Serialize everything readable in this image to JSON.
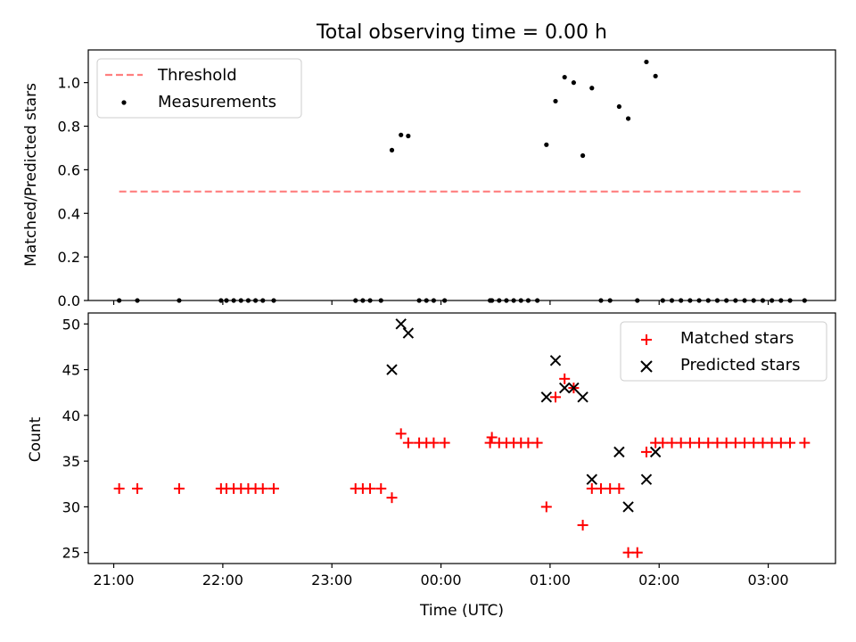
{
  "figure": {
    "title": "Total observing time = 0.00 h"
  },
  "chart_data": [
    {
      "type": "scatter",
      "title": "Total observing time = 0.00 h",
      "xlabel": "",
      "ylabel": "Matched/Predicted stars",
      "x_unit": "hours since 21:00 UTC",
      "xlim": [
        "20:46",
        "03:37"
      ],
      "ylim": [
        0,
        1.15
      ],
      "xticks": [
        "21:00",
        "22:00",
        "23:00",
        "00:00",
        "01:00",
        "02:00",
        "03:00"
      ],
      "yticks": [
        "0.0",
        "0.2",
        "0.4",
        "0.6",
        "0.8",
        "1.0"
      ],
      "legend": {
        "position": "top-left",
        "entries": [
          "Threshold",
          "Measurements"
        ]
      },
      "series": [
        {
          "name": "Threshold",
          "kind": "dashed-line",
          "color": "#ff7f7f",
          "points": [
            [
              "21:03",
              0.5
            ],
            [
              "03:18",
              0.5
            ]
          ]
        },
        {
          "name": "Measurements",
          "kind": "dot",
          "color": "#000000",
          "points": [
            [
              "21:03",
              0.0
            ],
            [
              "21:13",
              0.0
            ],
            [
              "21:36",
              0.0
            ],
            [
              "21:59",
              0.0
            ],
            [
              "22:02",
              0.0
            ],
            [
              "22:06",
              0.0
            ],
            [
              "22:10",
              0.0
            ],
            [
              "22:14",
              0.0
            ],
            [
              "22:18",
              0.0
            ],
            [
              "22:22",
              0.0
            ],
            [
              "22:28",
              0.0
            ],
            [
              "23:13",
              0.0
            ],
            [
              "23:17",
              0.0
            ],
            [
              "23:21",
              0.0
            ],
            [
              "23:27",
              0.0
            ],
            [
              "23:33",
              0.69
            ],
            [
              "23:38",
              0.76
            ],
            [
              "23:42",
              0.755
            ],
            [
              "23:48",
              0.0
            ],
            [
              "23:52",
              0.0
            ],
            [
              "23:56",
              0.0
            ],
            [
              "00:02",
              0.0
            ],
            [
              "00:27",
              0.0
            ],
            [
              "00:28",
              0.0
            ],
            [
              "00:32",
              0.0
            ],
            [
              "00:36",
              0.0
            ],
            [
              "00:40",
              0.0
            ],
            [
              "00:44",
              0.0
            ],
            [
              "00:48",
              0.0
            ],
            [
              "00:53",
              0.0
            ],
            [
              "00:58",
              0.715
            ],
            [
              "01:03",
              0.915
            ],
            [
              "01:08",
              1.025
            ],
            [
              "01:13",
              1.0
            ],
            [
              "01:18",
              0.665
            ],
            [
              "01:23",
              0.975
            ],
            [
              "01:28",
              0.0
            ],
            [
              "01:33",
              0.0
            ],
            [
              "01:38",
              0.89
            ],
            [
              "01:43",
              0.835
            ],
            [
              "01:48",
              0.0
            ],
            [
              "01:53",
              1.095
            ],
            [
              "01:58",
              1.03
            ],
            [
              "02:02",
              0.0
            ],
            [
              "02:07",
              0.0
            ],
            [
              "02:12",
              0.0
            ],
            [
              "02:17",
              0.0
            ],
            [
              "02:22",
              0.0
            ],
            [
              "02:27",
              0.0
            ],
            [
              "02:32",
              0.0
            ],
            [
              "02:37",
              0.0
            ],
            [
              "02:42",
              0.0
            ],
            [
              "02:47",
              0.0
            ],
            [
              "02:52",
              0.0
            ],
            [
              "02:57",
              0.0
            ],
            [
              "03:02",
              0.0
            ],
            [
              "03:07",
              0.0
            ],
            [
              "03:12",
              0.0
            ],
            [
              "03:20",
              0.0
            ]
          ]
        }
      ]
    },
    {
      "type": "scatter",
      "title": "",
      "xlabel": "Time (UTC)",
      "ylabel": "Count",
      "x_unit": "hours since 21:00 UTC",
      "xlim": [
        "20:46",
        "03:37"
      ],
      "ylim": [
        23.8,
        51.2
      ],
      "xticks": [
        "21:00",
        "22:00",
        "23:00",
        "00:00",
        "01:00",
        "02:00",
        "03:00"
      ],
      "yticks": [
        "25",
        "30",
        "35",
        "40",
        "45",
        "50"
      ],
      "legend": {
        "position": "top-right",
        "entries": [
          "Matched stars",
          "Predicted stars"
        ]
      },
      "series": [
        {
          "name": "Matched stars",
          "kind": "plus",
          "color": "#ff0000",
          "points": [
            [
              "21:03",
              32
            ],
            [
              "21:13",
              32
            ],
            [
              "21:36",
              32
            ],
            [
              "21:59",
              32
            ],
            [
              "22:02",
              32
            ],
            [
              "22:06",
              32
            ],
            [
              "22:10",
              32
            ],
            [
              "22:14",
              32
            ],
            [
              "22:18",
              32
            ],
            [
              "22:22",
              32
            ],
            [
              "22:28",
              32
            ],
            [
              "23:13",
              32
            ],
            [
              "23:17",
              32
            ],
            [
              "23:21",
              32
            ],
            [
              "23:27",
              32
            ],
            [
              "23:33",
              31
            ],
            [
              "23:38",
              38
            ],
            [
              "23:42",
              37
            ],
            [
              "23:48",
              37
            ],
            [
              "23:52",
              37
            ],
            [
              "23:56",
              37
            ],
            [
              "00:02",
              37
            ],
            [
              "00:27",
              37
            ],
            [
              "00:28",
              37.6
            ],
            [
              "00:32",
              37
            ],
            [
              "00:36",
              37
            ],
            [
              "00:40",
              37
            ],
            [
              "00:44",
              37
            ],
            [
              "00:48",
              37
            ],
            [
              "00:53",
              37
            ],
            [
              "00:58",
              30
            ],
            [
              "01:03",
              42
            ],
            [
              "01:08",
              44
            ],
            [
              "01:13",
              43
            ],
            [
              "01:18",
              28
            ],
            [
              "01:23",
              32
            ],
            [
              "01:28",
              32
            ],
            [
              "01:33",
              32
            ],
            [
              "01:38",
              32
            ],
            [
              "01:43",
              25
            ],
            [
              "01:48",
              25
            ],
            [
              "01:53",
              36
            ],
            [
              "01:58",
              37
            ],
            [
              "02:02",
              37
            ],
            [
              "02:07",
              37
            ],
            [
              "02:12",
              37
            ],
            [
              "02:17",
              37
            ],
            [
              "02:22",
              37
            ],
            [
              "02:27",
              37
            ],
            [
              "02:32",
              37
            ],
            [
              "02:37",
              37
            ],
            [
              "02:42",
              37
            ],
            [
              "02:47",
              37
            ],
            [
              "02:52",
              37
            ],
            [
              "02:57",
              37
            ],
            [
              "03:02",
              37
            ],
            [
              "03:07",
              37
            ],
            [
              "03:12",
              37
            ],
            [
              "03:20",
              37
            ]
          ]
        },
        {
          "name": "Predicted stars",
          "kind": "x",
          "color": "#000000",
          "points": [
            [
              "23:33",
              45
            ],
            [
              "23:38",
              50
            ],
            [
              "23:42",
              49
            ],
            [
              "00:58",
              42
            ],
            [
              "01:03",
              46
            ],
            [
              "01:08",
              43
            ],
            [
              "01:13",
              43
            ],
            [
              "01:18",
              42
            ],
            [
              "01:23",
              33
            ],
            [
              "01:38",
              36
            ],
            [
              "01:43",
              30
            ],
            [
              "01:53",
              33
            ],
            [
              "01:58",
              36
            ]
          ]
        }
      ]
    }
  ]
}
